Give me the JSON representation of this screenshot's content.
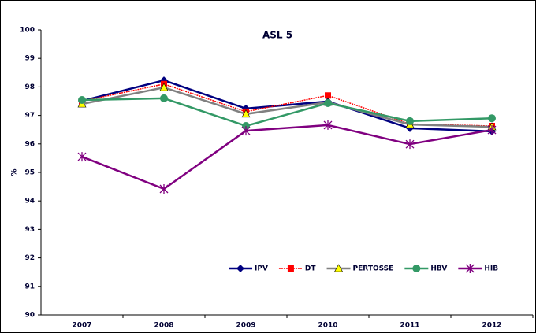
{
  "chart_data": {
    "type": "line",
    "title": "ASL 5",
    "y_label": "%",
    "categories": [
      "2007",
      "2008",
      "2009",
      "2010",
      "2011",
      "2012"
    ],
    "ylim": [
      90,
      100
    ],
    "yticks": [
      90,
      91,
      92,
      93,
      94,
      95,
      96,
      97,
      98,
      99,
      100
    ],
    "grid": false,
    "legend": "bottom-right",
    "series": [
      {
        "name": "IPV",
        "color": "#000080",
        "marker": "diamond",
        "marker_color": "#000080",
        "values": [
          97.51,
          98.23,
          97.24,
          97.49,
          96.55,
          96.44
        ]
      },
      {
        "name": "DT",
        "color": "#ff0000",
        "dash": true,
        "marker": "square",
        "marker_color": "#ff0000",
        "values": [
          97.5,
          98.1,
          97.13,
          97.7,
          96.7,
          96.63
        ]
      },
      {
        "name": "PERTOSSE",
        "color": "#808080",
        "marker": "triangle",
        "marker_color": "#ffff00",
        "values": [
          97.4,
          97.98,
          97.05,
          97.46,
          96.68,
          96.6
        ]
      },
      {
        "name": "HBV",
        "color": "#339966",
        "marker": "circle",
        "marker_color": "#339966",
        "values": [
          97.54,
          97.6,
          96.63,
          97.43,
          96.8,
          96.9
        ]
      },
      {
        "name": "HIB",
        "color": "#800080",
        "marker": "star",
        "marker_color": "#800080",
        "values": [
          95.55,
          94.42,
          96.46,
          96.66,
          95.99,
          96.49
        ]
      }
    ]
  }
}
